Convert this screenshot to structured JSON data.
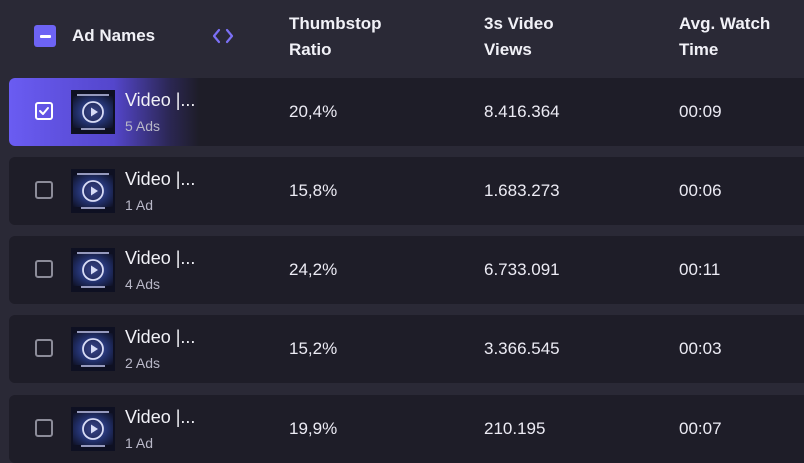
{
  "header": {
    "ad_names_label": "Ad Names",
    "columns": [
      {
        "line1": "Thumbstop",
        "line2": "Ratio"
      },
      {
        "line1": "3s Video",
        "line2": "Views"
      },
      {
        "line1": "Avg. Watch",
        "line2": "Time"
      }
    ],
    "icons": {
      "select_all": "minus-checkbox-icon",
      "expand": "code-chevrons-icon"
    }
  },
  "rows": [
    {
      "name": "Video |...",
      "count": "5 Ads",
      "thumbstop": "20,4%",
      "views": "8.416.364",
      "watch": "00:09",
      "selected": true
    },
    {
      "name": "Video |...",
      "count": "1 Ad",
      "thumbstop": "15,8%",
      "views": "1.683.273",
      "watch": "00:06",
      "selected": false
    },
    {
      "name": "Video |...",
      "count": "4 Ads",
      "thumbstop": "24,2%",
      "views": "6.733.091",
      "watch": "00:11",
      "selected": false
    },
    {
      "name": "Video |...",
      "count": "2 Ads",
      "thumbstop": "15,2%",
      "views": "3.366.545",
      "watch": "00:03",
      "selected": false
    },
    {
      "name": "Video |...",
      "count": "1 Ad",
      "thumbstop": "19,9%",
      "views": "210.195",
      "watch": "00:07",
      "selected": false
    }
  ],
  "colors": {
    "accent": "#6d63f4",
    "background": "#2a2936",
    "row": "#1e1d28"
  }
}
